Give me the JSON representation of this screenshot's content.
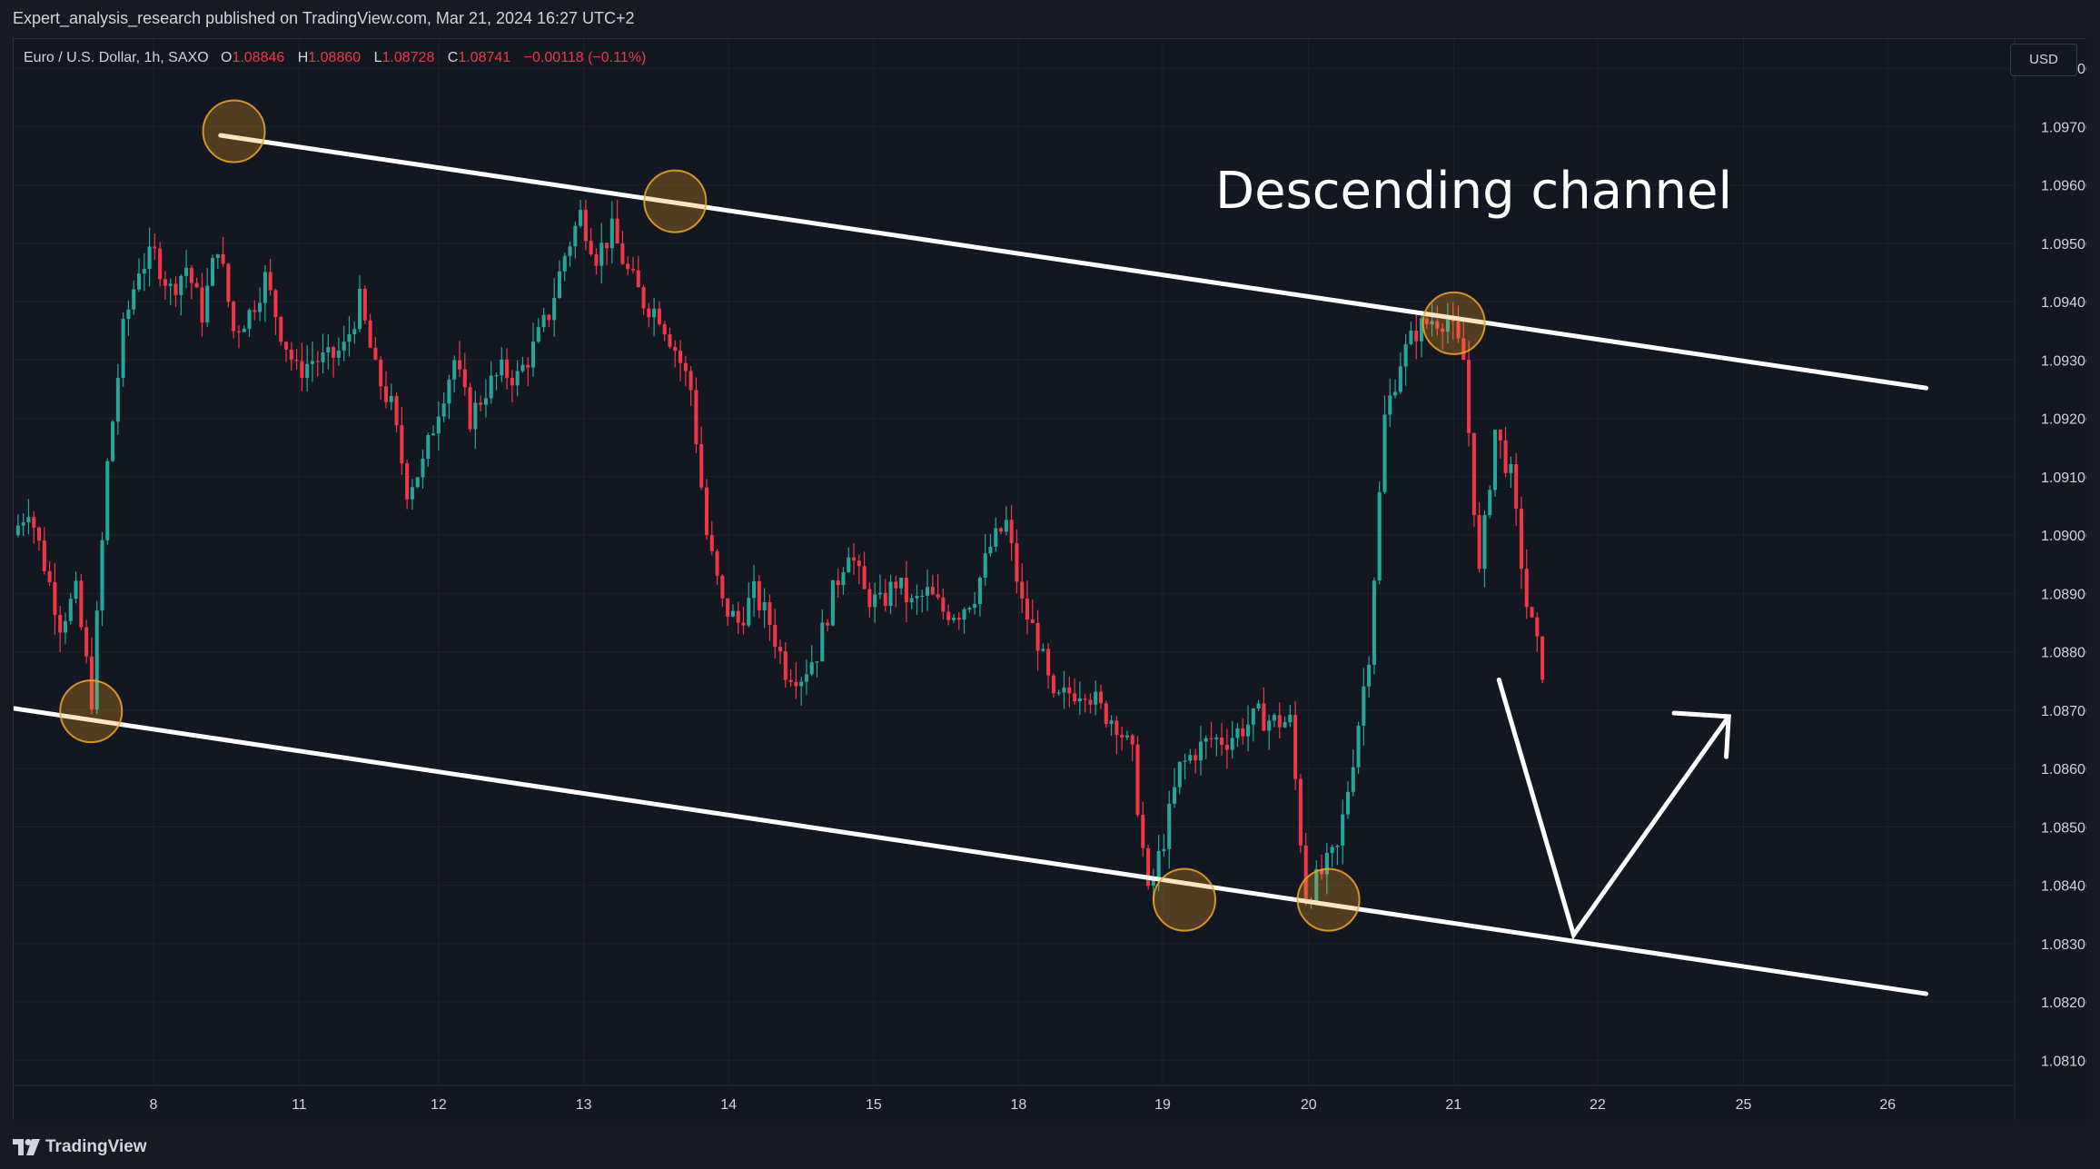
{
  "header": {
    "published_text": "Expert_analysis_research published on TradingView.com, Mar 21, 2024 16:27 UTC+2"
  },
  "legend": {
    "symbol": "Euro / U.S. Dollar, 1h, SAXO",
    "open_label": "O",
    "open": "1.08846",
    "high_label": "H",
    "high": "1.08860",
    "low_label": "L",
    "low": "1.08728",
    "close_label": "C",
    "close": "1.08741",
    "change": "−0.00118 (−0.11%)"
  },
  "currency_button": "USD",
  "footer": {
    "brand": "TradingView"
  },
  "colors": {
    "up": "#26a69a",
    "down": "#f23645",
    "background": "#131722",
    "grid": "#1e222d",
    "annotation": "#ffffff",
    "circle": "#f5a623"
  },
  "chart_data": {
    "type": "candlestick",
    "symbol": "EURUSD",
    "timeframe": "1h",
    "annotation_text": "Descending channel",
    "x_ticks": [
      "8",
      "11",
      "12",
      "13",
      "14",
      "15",
      "18",
      "19",
      "20",
      "21",
      "22",
      "25",
      "26"
    ],
    "y_ticks": [
      "1.09800",
      "1.09700",
      "1.09600",
      "1.09500",
      "1.09400",
      "1.09300",
      "1.09200",
      "1.09100",
      "1.09000",
      "1.08900",
      "1.08800",
      "1.08700",
      "1.08600",
      "1.08500",
      "1.08400",
      "1.08300",
      "1.08200",
      "1.08100"
    ],
    "ylim": [
      1.0806,
      1.0985
    ],
    "price_path": [
      1.09,
      1.0905,
      1.0895,
      1.0885,
      1.089,
      1.0872,
      1.0912,
      1.0935,
      1.0946,
      1.0948,
      1.0942,
      1.0946,
      1.0938,
      1.095,
      1.0935,
      1.0938,
      1.0944,
      1.0935,
      1.0928,
      1.093,
      1.093,
      1.0932,
      1.094,
      1.0928,
      1.0922,
      1.0908,
      1.0912,
      1.0922,
      1.093,
      1.092,
      1.0925,
      1.0928,
      1.0927,
      1.0932,
      1.0938,
      1.0948,
      1.0955,
      1.0948,
      1.0952,
      1.0945,
      1.094,
      1.0938,
      1.0932,
      1.0925,
      1.09,
      1.0888,
      1.0885,
      1.089,
      1.0885,
      1.0877,
      1.0876,
      1.088,
      1.089,
      1.0898,
      1.089,
      1.0888,
      1.0892,
      1.0888,
      1.089,
      1.0887,
      1.0887,
      1.089,
      1.0898,
      1.0902,
      1.0888,
      1.0882,
      1.0871,
      1.0873,
      1.0874,
      1.087,
      1.0868,
      1.0862,
      1.0838,
      1.0848,
      1.086,
      1.0863,
      1.0865,
      1.0865,
      1.0867,
      1.0869,
      1.0868,
      1.0868,
      1.0838,
      1.0842,
      1.0846,
      1.0862,
      1.088,
      1.092,
      1.093,
      1.0935,
      1.0937,
      1.0937,
      1.093,
      1.0893,
      1.0918,
      1.091,
      1.0888,
      1.0877
    ],
    "channel_upper": [
      [
        0.1034,
        1.09685
      ],
      [
        0.9558,
        1.09252
      ]
    ],
    "channel_lower": [
      [
        0.0,
        1.08703
      ],
      [
        0.9558,
        1.08214
      ]
    ],
    "touch_points": [
      [
        0.0387,
        1.08698
      ],
      [
        0.1101,
        1.09692
      ],
      [
        0.3306,
        1.09572
      ],
      [
        0.5851,
        1.08375
      ],
      [
        0.6571,
        1.08375
      ],
      [
        0.7198,
        1.09363
      ]
    ],
    "projection_path": [
      [
        0.7423,
        1.08752
      ],
      [
        0.7796,
        1.08315
      ],
      [
        0.8571,
        1.08689
      ]
    ],
    "projection_arrowhead": [
      [
        0.8298,
        1.08695
      ],
      [
        0.8571,
        1.08689
      ],
      [
        0.8559,
        1.0862
      ]
    ]
  }
}
